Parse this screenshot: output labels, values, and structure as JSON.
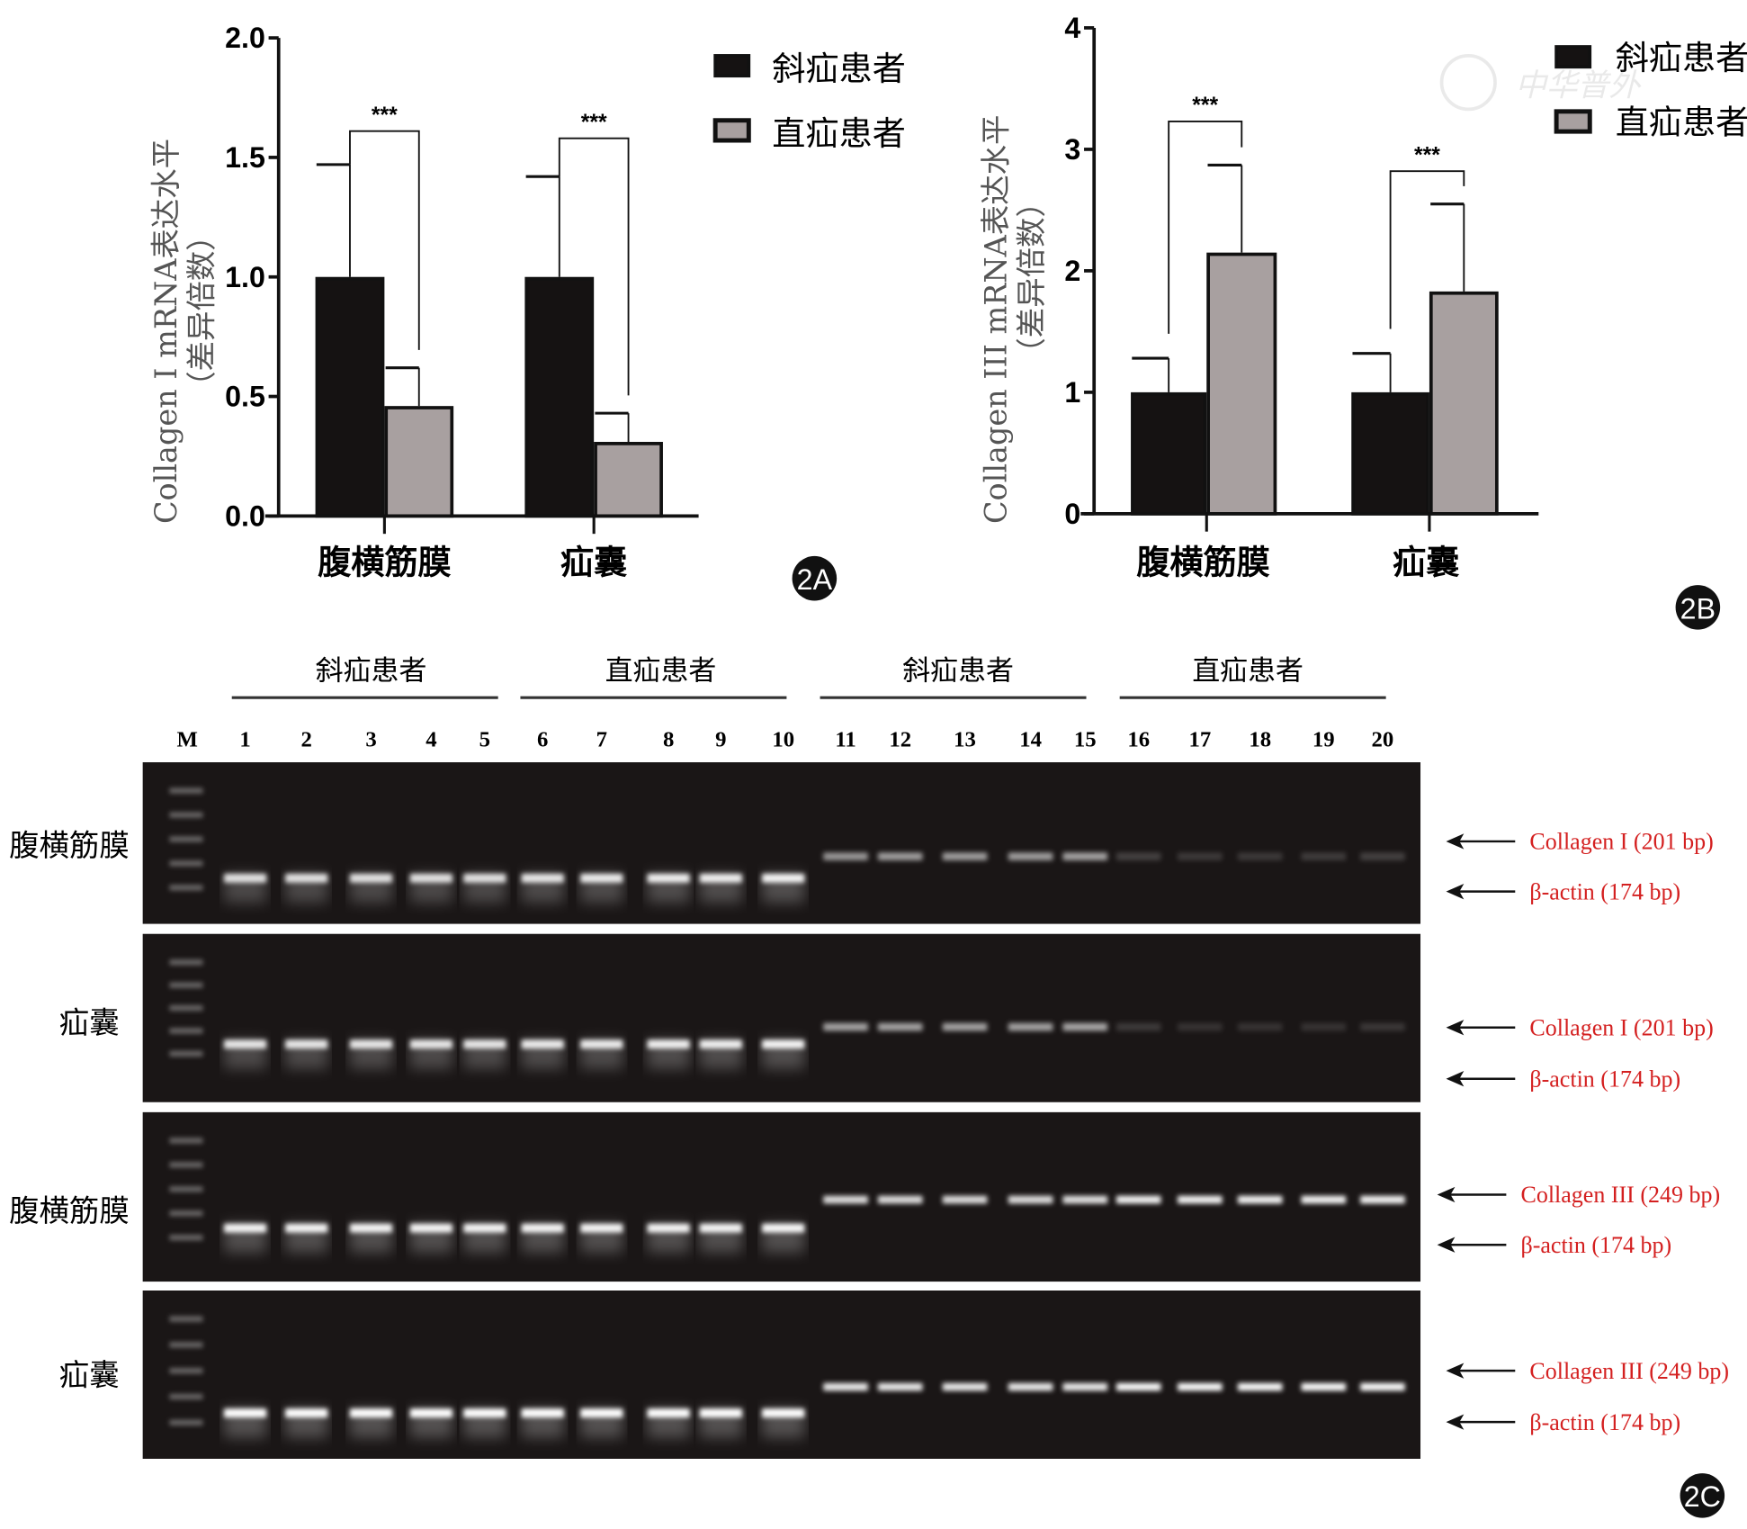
{
  "colors": {
    "oblique": "#151212",
    "direct": "#a8a0a0",
    "gel_bg": "#1a1616",
    "label_red": "#d42020"
  },
  "chart_data": [
    {
      "type": "bar",
      "panel_label": "2A",
      "ylabel_line1": "Collagen I mRNA表达水平",
      "ylabel_line2": "（差异倍数）",
      "ylim": [
        0,
        2.0
      ],
      "yticks": [
        "0.0",
        "0.5",
        "1.0",
        "1.5",
        "2.0"
      ],
      "ytick_values": [
        0,
        0.5,
        1.0,
        1.5,
        2.0
      ],
      "categories": [
        "腹横筋膜",
        "疝囊"
      ],
      "legend": [
        "斜疝患者",
        "直疝患者"
      ],
      "legend_position": "top-right",
      "series": [
        {
          "name": "斜疝患者",
          "values": [
            1.0,
            1.0
          ],
          "errors": [
            0.47,
            0.42
          ]
        },
        {
          "name": "直疝患者",
          "values": [
            0.46,
            0.31
          ],
          "errors": [
            0.16,
            0.12
          ]
        }
      ],
      "significance": [
        {
          "label": "***",
          "level": 1.61
        },
        {
          "label": "***",
          "level": 1.58
        }
      ]
    },
    {
      "type": "bar",
      "panel_label": "2B",
      "ylabel_line1": "Collagen III mRNA表达水平",
      "ylabel_line2": "（差异倍数）",
      "ylim": [
        0,
        4
      ],
      "yticks": [
        "0",
        "1",
        "2",
        "3",
        "4"
      ],
      "ytick_values": [
        0,
        1,
        2,
        3,
        4
      ],
      "categories": [
        "腹横筋膜",
        "疝囊"
      ],
      "legend": [
        "斜疝患者",
        "直疝患者"
      ],
      "legend_position": "top-right",
      "series": [
        {
          "name": "斜疝患者",
          "values": [
            1.0,
            1.0
          ],
          "errors": [
            0.28,
            0.32
          ]
        },
        {
          "name": "直疝患者",
          "values": [
            2.15,
            1.83
          ],
          "errors": [
            0.72,
            0.72
          ]
        }
      ],
      "significance": [
        {
          "label": "***",
          "level": 3.23
        },
        {
          "label": "***",
          "level": 2.82
        }
      ]
    }
  ],
  "gel": {
    "panel_label": "2C",
    "group_headers": [
      "斜疝患者",
      "直疝患者",
      "斜疝患者",
      "直疝患者"
    ],
    "lanes": [
      "M",
      "1",
      "2",
      "3",
      "4",
      "5",
      "6",
      "7",
      "8",
      "9",
      "10",
      "11",
      "12",
      "13",
      "14",
      "15",
      "16",
      "17",
      "18",
      "19",
      "20"
    ],
    "rows": [
      {
        "tissue": "腹横筋膜",
        "target": "Collagen I (201 bp)",
        "control": "β-actin (174 bp)",
        "actin": [
          0.85,
          0.85,
          0.85,
          0.85,
          0.85,
          0.88,
          0.9,
          0.92,
          0.92,
          0.95,
          0,
          0,
          0,
          0,
          0,
          0,
          0,
          0,
          0,
          0
        ],
        "collagen": [
          0,
          0,
          0,
          0,
          0,
          0,
          0,
          0,
          0,
          0,
          0.55,
          0.58,
          0.58,
          0.58,
          0.6,
          0.18,
          0.15,
          0.15,
          0.16,
          0.18
        ]
      },
      {
        "tissue": "疝囊",
        "target": "Collagen I (201 bp)",
        "control": "β-actin (174 bp)",
        "actin": [
          0.88,
          0.88,
          0.88,
          0.88,
          0.88,
          0.9,
          0.9,
          0.92,
          0.92,
          0.95,
          0,
          0,
          0,
          0,
          0,
          0,
          0,
          0,
          0,
          0
        ],
        "collagen": [
          0,
          0,
          0,
          0,
          0,
          0,
          0,
          0,
          0,
          0,
          0.6,
          0.6,
          0.6,
          0.6,
          0.62,
          0.15,
          0.12,
          0.12,
          0.12,
          0.14
        ]
      },
      {
        "tissue": "腹横筋膜",
        "target": "Collagen III (249 bp)",
        "control": "β-actin (174 bp)",
        "actin": [
          0.95,
          0.95,
          0.95,
          0.95,
          0.95,
          0.95,
          0.95,
          0.95,
          0.95,
          0.97,
          0,
          0,
          0,
          0,
          0,
          0,
          0,
          0,
          0,
          0
        ],
        "collagen": [
          0,
          0,
          0,
          0,
          0,
          0,
          0,
          0,
          0,
          0,
          0.85,
          0.85,
          0.85,
          0.85,
          0.87,
          0.95,
          0.95,
          0.95,
          0.95,
          0.95
        ]
      },
      {
        "tissue": "疝囊",
        "target": "Collagen III (249 bp)",
        "control": "β-actin (174 bp)",
        "actin": [
          1,
          1,
          1,
          1,
          1,
          1,
          1,
          1,
          1,
          1,
          0,
          0,
          0,
          0,
          0,
          0,
          0,
          0,
          0,
          0
        ],
        "collagen": [
          0,
          0,
          0,
          0,
          0,
          0,
          0,
          0,
          0,
          0,
          0.9,
          0.9,
          0.9,
          0.9,
          0.9,
          0.98,
          0.98,
          0.98,
          0.98,
          0.98
        ]
      }
    ]
  }
}
